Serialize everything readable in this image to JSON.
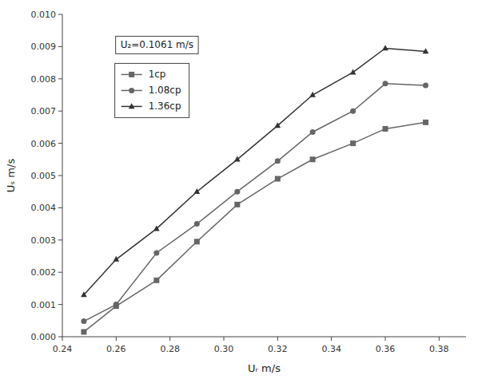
{
  "chart_data": {
    "type": "line",
    "xlabel": "Uᵣ m/s",
    "ylabel": "Uₛ m/s",
    "annotation": "U₂=0.1061 m/s",
    "x": [
      0.248,
      0.26,
      0.275,
      0.29,
      0.305,
      0.32,
      0.333,
      0.348,
      0.36,
      0.375
    ],
    "series": [
      {
        "name": "1cp",
        "marker": "square",
        "color": "#666666",
        "values": [
          0.00015,
          0.00095,
          0.00175,
          0.00295,
          0.0041,
          0.0049,
          0.0055,
          0.006,
          0.00645,
          0.00665
        ]
      },
      {
        "name": "1.08cp",
        "marker": "circle",
        "color": "#666666",
        "values": [
          0.00048,
          0.001,
          0.0026,
          0.0035,
          0.0045,
          0.00545,
          0.00635,
          0.007,
          0.00785,
          0.0078
        ]
      },
      {
        "name": "1.36cp",
        "marker": "triangle",
        "color": "#333333",
        "values": [
          0.0013,
          0.0024,
          0.00335,
          0.0045,
          0.0055,
          0.00655,
          0.0075,
          0.0082,
          0.00895,
          0.00885
        ]
      }
    ],
    "xlim": [
      0.24,
      0.39
    ],
    "ylim": [
      0.0,
      0.01
    ],
    "xticks": [
      0.24,
      0.26,
      0.28,
      {
        "value": 0.3,
        "label": "0.30"
      },
      0.32,
      0.34,
      0.36,
      0.38
    ],
    "yticks": [
      {
        "value": 0.0,
        "label": "0.000"
      },
      0.001,
      0.002,
      0.003,
      0.004,
      0.005,
      0.006,
      0.007,
      0.008,
      0.009,
      {
        "value": 0.01,
        "label": "0.010"
      }
    ],
    "legend": "upper left",
    "grid": false
  }
}
